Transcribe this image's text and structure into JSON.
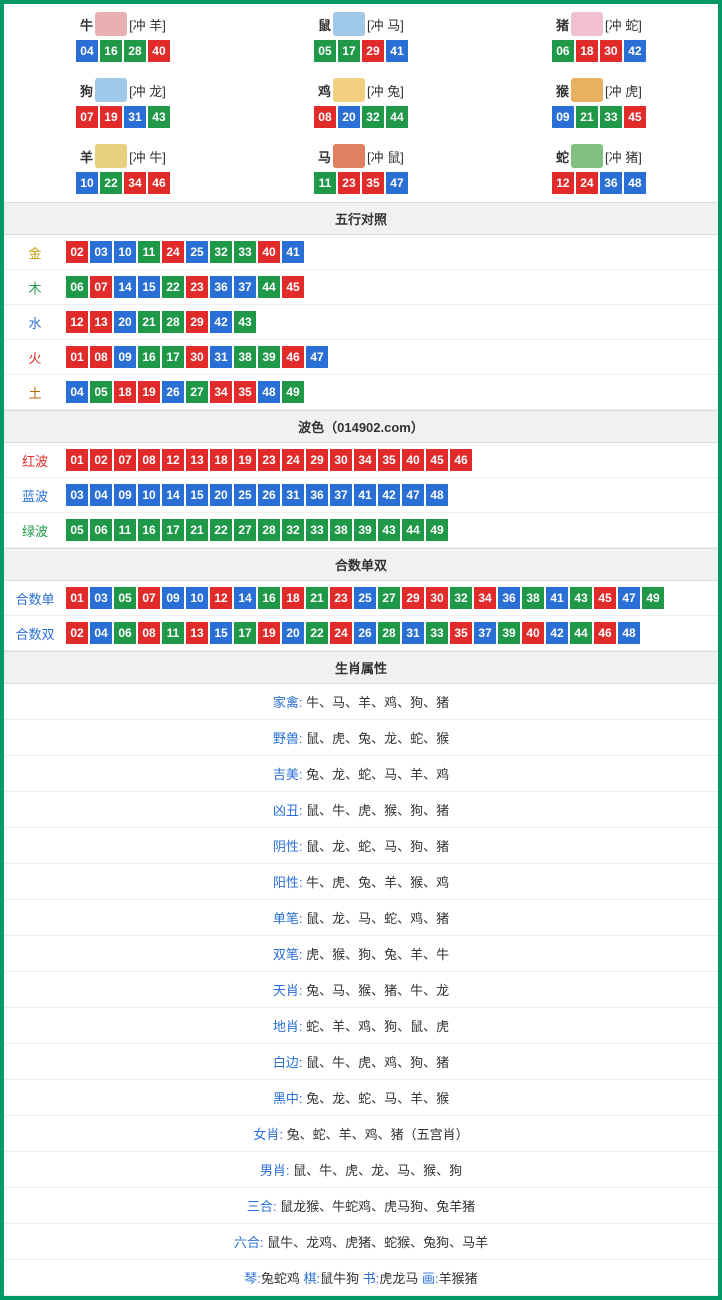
{
  "colors": {
    "red": "#e12b2b",
    "blue": "#2a6fd6",
    "green": "#1f9948",
    "border": "#009966"
  },
  "zodiac": [
    {
      "name": "牛",
      "conf": "[冲 羊]",
      "nums": [
        {
          "n": "04",
          "c": "blue"
        },
        {
          "n": "16",
          "c": "green"
        },
        {
          "n": "28",
          "c": "green"
        },
        {
          "n": "40",
          "c": "red"
        }
      ]
    },
    {
      "name": "鼠",
      "conf": "[冲 马]",
      "nums": [
        {
          "n": "05",
          "c": "green"
        },
        {
          "n": "17",
          "c": "green"
        },
        {
          "n": "29",
          "c": "red"
        },
        {
          "n": "41",
          "c": "blue"
        }
      ]
    },
    {
      "name": "猪",
      "conf": "[冲 蛇]",
      "nums": [
        {
          "n": "06",
          "c": "green"
        },
        {
          "n": "18",
          "c": "red"
        },
        {
          "n": "30",
          "c": "red"
        },
        {
          "n": "42",
          "c": "blue"
        }
      ]
    },
    {
      "name": "狗",
      "conf": "[冲 龙]",
      "nums": [
        {
          "n": "07",
          "c": "red"
        },
        {
          "n": "19",
          "c": "red"
        },
        {
          "n": "31",
          "c": "blue"
        },
        {
          "n": "43",
          "c": "green"
        }
      ]
    },
    {
      "name": "鸡",
      "conf": "[冲 兔]",
      "nums": [
        {
          "n": "08",
          "c": "red"
        },
        {
          "n": "20",
          "c": "blue"
        },
        {
          "n": "32",
          "c": "green"
        },
        {
          "n": "44",
          "c": "green"
        }
      ]
    },
    {
      "name": "猴",
      "conf": "[冲 虎]",
      "nums": [
        {
          "n": "09",
          "c": "blue"
        },
        {
          "n": "21",
          "c": "green"
        },
        {
          "n": "33",
          "c": "green"
        },
        {
          "n": "45",
          "c": "red"
        }
      ]
    },
    {
      "name": "羊",
      "conf": "[冲 牛]",
      "nums": [
        {
          "n": "10",
          "c": "blue"
        },
        {
          "n": "22",
          "c": "green"
        },
        {
          "n": "34",
          "c": "red"
        },
        {
          "n": "46",
          "c": "red"
        }
      ]
    },
    {
      "name": "马",
      "conf": "[冲 鼠]",
      "nums": [
        {
          "n": "11",
          "c": "green"
        },
        {
          "n": "23",
          "c": "red"
        },
        {
          "n": "35",
          "c": "red"
        },
        {
          "n": "47",
          "c": "blue"
        }
      ]
    },
    {
      "name": "蛇",
      "conf": "[冲 猪]",
      "nums": [
        {
          "n": "12",
          "c": "red"
        },
        {
          "n": "24",
          "c": "red"
        },
        {
          "n": "36",
          "c": "blue"
        },
        {
          "n": "48",
          "c": "blue"
        }
      ]
    }
  ],
  "zodiac_icon_bg": [
    "#e8b0b0",
    "#a0c8e8",
    "#f0c0d0",
    "#a0c8e8",
    "#f0d080",
    "#e8b060",
    "#e8d080",
    "#e08060",
    "#80c080"
  ],
  "wuxing_header": "五行对照",
  "wuxing": [
    {
      "label": "金",
      "cls": "lab-gold",
      "nums": [
        {
          "n": "02",
          "c": "red"
        },
        {
          "n": "03",
          "c": "blue"
        },
        {
          "n": "10",
          "c": "blue"
        },
        {
          "n": "11",
          "c": "green"
        },
        {
          "n": "24",
          "c": "red"
        },
        {
          "n": "25",
          "c": "blue"
        },
        {
          "n": "32",
          "c": "green"
        },
        {
          "n": "33",
          "c": "green"
        },
        {
          "n": "40",
          "c": "red"
        },
        {
          "n": "41",
          "c": "blue"
        }
      ]
    },
    {
      "label": "木",
      "cls": "lab-wood",
      "nums": [
        {
          "n": "06",
          "c": "green"
        },
        {
          "n": "07",
          "c": "red"
        },
        {
          "n": "14",
          "c": "blue"
        },
        {
          "n": "15",
          "c": "blue"
        },
        {
          "n": "22",
          "c": "green"
        },
        {
          "n": "23",
          "c": "red"
        },
        {
          "n": "36",
          "c": "blue"
        },
        {
          "n": "37",
          "c": "blue"
        },
        {
          "n": "44",
          "c": "green"
        },
        {
          "n": "45",
          "c": "red"
        }
      ]
    },
    {
      "label": "水",
      "cls": "lab-water",
      "nums": [
        {
          "n": "12",
          "c": "red"
        },
        {
          "n": "13",
          "c": "red"
        },
        {
          "n": "20",
          "c": "blue"
        },
        {
          "n": "21",
          "c": "green"
        },
        {
          "n": "28",
          "c": "green"
        },
        {
          "n": "29",
          "c": "red"
        },
        {
          "n": "42",
          "c": "blue"
        },
        {
          "n": "43",
          "c": "green"
        }
      ]
    },
    {
      "label": "火",
      "cls": "lab-fire",
      "nums": [
        {
          "n": "01",
          "c": "red"
        },
        {
          "n": "08",
          "c": "red"
        },
        {
          "n": "09",
          "c": "blue"
        },
        {
          "n": "16",
          "c": "green"
        },
        {
          "n": "17",
          "c": "green"
        },
        {
          "n": "30",
          "c": "red"
        },
        {
          "n": "31",
          "c": "blue"
        },
        {
          "n": "38",
          "c": "green"
        },
        {
          "n": "39",
          "c": "green"
        },
        {
          "n": "46",
          "c": "red"
        },
        {
          "n": "47",
          "c": "blue"
        }
      ]
    },
    {
      "label": "土",
      "cls": "lab-earth",
      "nums": [
        {
          "n": "04",
          "c": "blue"
        },
        {
          "n": "05",
          "c": "green"
        },
        {
          "n": "18",
          "c": "red"
        },
        {
          "n": "19",
          "c": "red"
        },
        {
          "n": "26",
          "c": "blue"
        },
        {
          "n": "27",
          "c": "green"
        },
        {
          "n": "34",
          "c": "red"
        },
        {
          "n": "35",
          "c": "red"
        },
        {
          "n": "48",
          "c": "blue"
        },
        {
          "n": "49",
          "c": "green"
        }
      ]
    }
  ],
  "bose_header": "波色（014902.com）",
  "bose": [
    {
      "label": "红波",
      "cls": "lab-red",
      "nums": [
        {
          "n": "01",
          "c": "red"
        },
        {
          "n": "02",
          "c": "red"
        },
        {
          "n": "07",
          "c": "red"
        },
        {
          "n": "08",
          "c": "red"
        },
        {
          "n": "12",
          "c": "red"
        },
        {
          "n": "13",
          "c": "red"
        },
        {
          "n": "18",
          "c": "red"
        },
        {
          "n": "19",
          "c": "red"
        },
        {
          "n": "23",
          "c": "red"
        },
        {
          "n": "24",
          "c": "red"
        },
        {
          "n": "29",
          "c": "red"
        },
        {
          "n": "30",
          "c": "red"
        },
        {
          "n": "34",
          "c": "red"
        },
        {
          "n": "35",
          "c": "red"
        },
        {
          "n": "40",
          "c": "red"
        },
        {
          "n": "45",
          "c": "red"
        },
        {
          "n": "46",
          "c": "red"
        }
      ]
    },
    {
      "label": "蓝波",
      "cls": "lab-blue",
      "nums": [
        {
          "n": "03",
          "c": "blue"
        },
        {
          "n": "04",
          "c": "blue"
        },
        {
          "n": "09",
          "c": "blue"
        },
        {
          "n": "10",
          "c": "blue"
        },
        {
          "n": "14",
          "c": "blue"
        },
        {
          "n": "15",
          "c": "blue"
        },
        {
          "n": "20",
          "c": "blue"
        },
        {
          "n": "25",
          "c": "blue"
        },
        {
          "n": "26",
          "c": "blue"
        },
        {
          "n": "31",
          "c": "blue"
        },
        {
          "n": "36",
          "c": "blue"
        },
        {
          "n": "37",
          "c": "blue"
        },
        {
          "n": "41",
          "c": "blue"
        },
        {
          "n": "42",
          "c": "blue"
        },
        {
          "n": "47",
          "c": "blue"
        },
        {
          "n": "48",
          "c": "blue"
        }
      ]
    },
    {
      "label": "绿波",
      "cls": "lab-green",
      "nums": [
        {
          "n": "05",
          "c": "green"
        },
        {
          "n": "06",
          "c": "green"
        },
        {
          "n": "11",
          "c": "green"
        },
        {
          "n": "16",
          "c": "green"
        },
        {
          "n": "17",
          "c": "green"
        },
        {
          "n": "21",
          "c": "green"
        },
        {
          "n": "22",
          "c": "green"
        },
        {
          "n": "27",
          "c": "green"
        },
        {
          "n": "28",
          "c": "green"
        },
        {
          "n": "32",
          "c": "green"
        },
        {
          "n": "33",
          "c": "green"
        },
        {
          "n": "38",
          "c": "green"
        },
        {
          "n": "39",
          "c": "green"
        },
        {
          "n": "43",
          "c": "green"
        },
        {
          "n": "44",
          "c": "green"
        },
        {
          "n": "49",
          "c": "green"
        }
      ]
    }
  ],
  "heshu_header": "合数单双",
  "heshu": [
    {
      "label": "合数单",
      "cls": "lab-blue",
      "nums": [
        {
          "n": "01",
          "c": "red"
        },
        {
          "n": "03",
          "c": "blue"
        },
        {
          "n": "05",
          "c": "green"
        },
        {
          "n": "07",
          "c": "red"
        },
        {
          "n": "09",
          "c": "blue"
        },
        {
          "n": "10",
          "c": "blue"
        },
        {
          "n": "12",
          "c": "red"
        },
        {
          "n": "14",
          "c": "blue"
        },
        {
          "n": "16",
          "c": "green"
        },
        {
          "n": "18",
          "c": "red"
        },
        {
          "n": "21",
          "c": "green"
        },
        {
          "n": "23",
          "c": "red"
        },
        {
          "n": "25",
          "c": "blue"
        },
        {
          "n": "27",
          "c": "green"
        },
        {
          "n": "29",
          "c": "red"
        },
        {
          "n": "30",
          "c": "red"
        },
        {
          "n": "32",
          "c": "green"
        },
        {
          "n": "34",
          "c": "red"
        },
        {
          "n": "36",
          "c": "blue"
        },
        {
          "n": "38",
          "c": "green"
        },
        {
          "n": "41",
          "c": "blue"
        },
        {
          "n": "43",
          "c": "green"
        },
        {
          "n": "45",
          "c": "red"
        },
        {
          "n": "47",
          "c": "blue"
        },
        {
          "n": "49",
          "c": "green"
        }
      ]
    },
    {
      "label": "合数双",
      "cls": "lab-blue",
      "nums": [
        {
          "n": "02",
          "c": "red"
        },
        {
          "n": "04",
          "c": "blue"
        },
        {
          "n": "06",
          "c": "green"
        },
        {
          "n": "08",
          "c": "red"
        },
        {
          "n": "11",
          "c": "green"
        },
        {
          "n": "13",
          "c": "red"
        },
        {
          "n": "15",
          "c": "blue"
        },
        {
          "n": "17",
          "c": "green"
        },
        {
          "n": "19",
          "c": "red"
        },
        {
          "n": "20",
          "c": "blue"
        },
        {
          "n": "22",
          "c": "green"
        },
        {
          "n": "24",
          "c": "red"
        },
        {
          "n": "26",
          "c": "blue"
        },
        {
          "n": "28",
          "c": "green"
        },
        {
          "n": "31",
          "c": "blue"
        },
        {
          "n": "33",
          "c": "green"
        },
        {
          "n": "35",
          "c": "red"
        },
        {
          "n": "37",
          "c": "blue"
        },
        {
          "n": "39",
          "c": "green"
        },
        {
          "n": "40",
          "c": "red"
        },
        {
          "n": "42",
          "c": "blue"
        },
        {
          "n": "44",
          "c": "green"
        },
        {
          "n": "46",
          "c": "red"
        },
        {
          "n": "48",
          "c": "blue"
        }
      ]
    }
  ],
  "attr_header": "生肖属性",
  "attrs": [
    {
      "k": "家禽:",
      "v": " 牛、马、羊、鸡、狗、猪"
    },
    {
      "k": "野兽:",
      "v": " 鼠、虎、兔、龙、蛇、猴"
    },
    {
      "k": "吉美:",
      "v": " 兔、龙、蛇、马、羊、鸡"
    },
    {
      "k": "凶丑:",
      "v": " 鼠、牛、虎、猴、狗、猪"
    },
    {
      "k": "阴性:",
      "v": " 鼠、龙、蛇、马、狗、猪"
    },
    {
      "k": "阳性:",
      "v": " 牛、虎、兔、羊、猴、鸡"
    },
    {
      "k": "单笔:",
      "v": " 鼠、龙、马、蛇、鸡、猪"
    },
    {
      "k": "双笔:",
      "v": " 虎、猴、狗、兔、羊、牛"
    },
    {
      "k": "天肖:",
      "v": " 兔、马、猴、猪、牛、龙"
    },
    {
      "k": "地肖:",
      "v": " 蛇、羊、鸡、狗、鼠、虎"
    },
    {
      "k": "白边:",
      "v": " 鼠、牛、虎、鸡、狗、猪"
    },
    {
      "k": "黑中:",
      "v": " 兔、龙、蛇、马、羊、猴"
    },
    {
      "k": "女肖:",
      "v": " 兔、蛇、羊、鸡、猪（五宫肖）"
    },
    {
      "k": "男肖:",
      "v": " 鼠、牛、虎、龙、马、猴、狗"
    },
    {
      "k": "三合:",
      "v": " 鼠龙猴、牛蛇鸡、虎马狗、兔羊猪"
    },
    {
      "k": "六合:",
      "v": " 鼠牛、龙鸡、虎猪、蛇猴、兔狗、马羊"
    }
  ],
  "footer_parts": [
    {
      "k": "琴:",
      "v": "兔蛇鸡   "
    },
    {
      "k": "棋:",
      "v": "鼠牛狗   "
    },
    {
      "k": "书:",
      "v": "虎龙马   "
    },
    {
      "k": "画:",
      "v": "羊猴猪"
    }
  ]
}
